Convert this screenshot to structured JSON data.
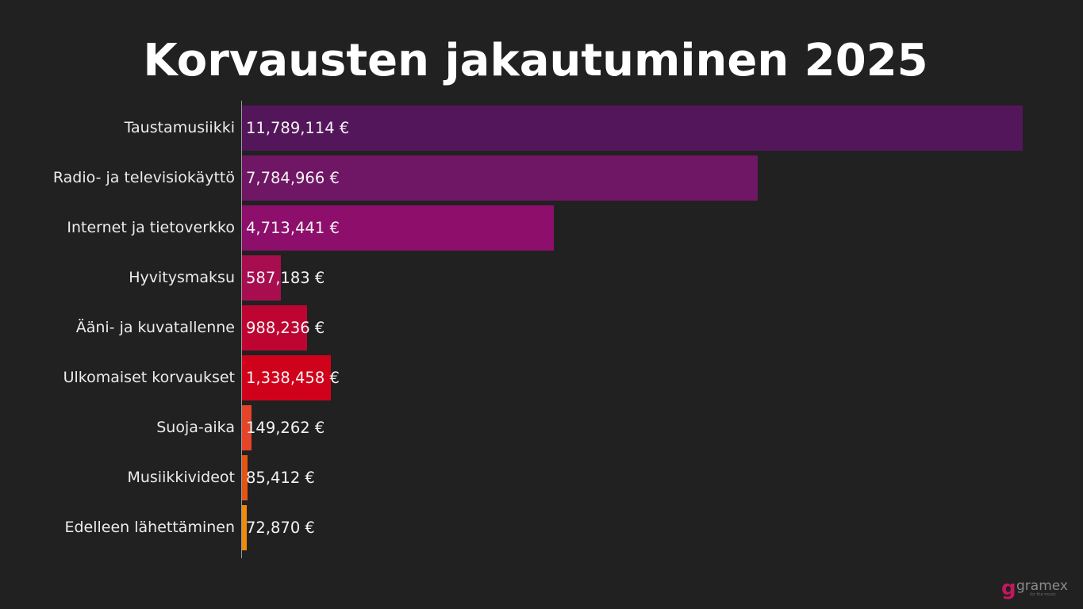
{
  "title": "Korvausten jakautuminen 2025",
  "logo": {
    "mark": "g",
    "name": "gramex",
    "tagline": "for the music"
  },
  "chart_data": {
    "type": "bar",
    "orientation": "horizontal",
    "title": "Korvausten jakautuminen 2025",
    "xlabel": "",
    "ylabel": "",
    "currency": "€",
    "grid": false,
    "legend": null,
    "categories": [
      "Taustamusiikki",
      "Radio- ja televisiokäyttö",
      "Internet ja tietoverkko",
      "Hyvitysmaksu",
      "Ääni- ja kuvatallenne",
      "Ulkomaiset korvaukset",
      "Suoja-aika",
      "Musiikkivideot",
      "Edelleen lähettäminen"
    ],
    "values": [
      11789114,
      7784966,
      4713441,
      587183,
      988236,
      1338458,
      149262,
      85412,
      72870
    ],
    "value_labels": [
      "11,789,114 €",
      "7,784,966 €",
      "4,713,441 €",
      "587,183 €",
      "988,236 €",
      "1,338,458 €",
      "149,262 €",
      "85,412 €",
      "72,870 €"
    ],
    "colors": [
      "#54165a",
      "#6f1664",
      "#8e0e6c",
      "#a80d4f",
      "#be0532",
      "#d0021b",
      "#e54428",
      "#e55413",
      "#f08a07"
    ],
    "xlim": [
      0,
      11789114
    ]
  }
}
